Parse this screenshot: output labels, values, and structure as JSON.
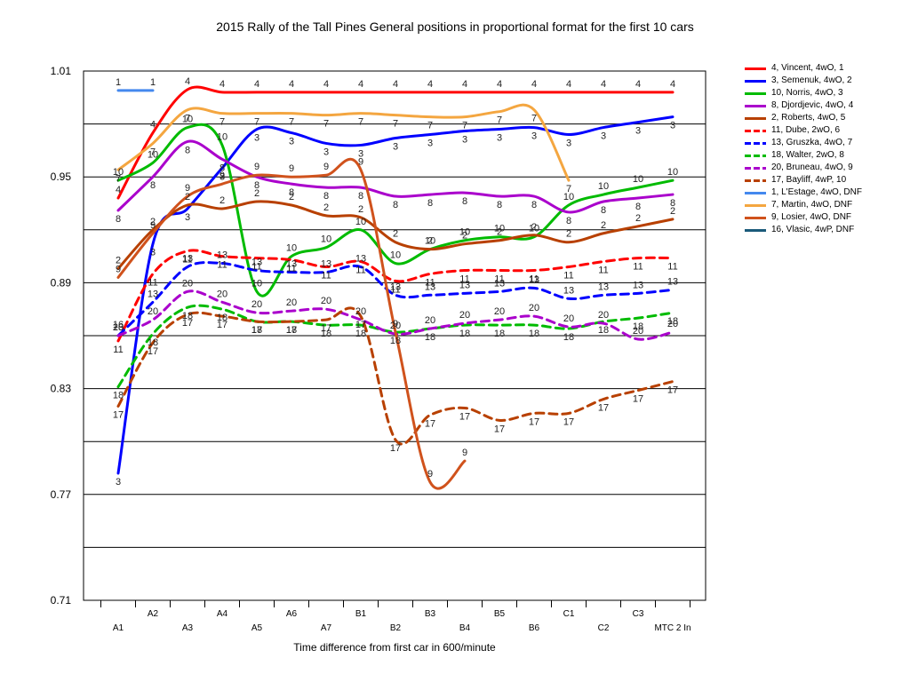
{
  "chart_data": {
    "type": "line",
    "title": "2015 Rally of the Tall Pines  General positions in proportional format for the first 10 cars",
    "xlabel": "Time difference from first car in 600/minute",
    "ylabel": "",
    "ylim": [
      0.71,
      1.01
    ],
    "yticks": [
      "1.01",
      "0.95",
      "0.89",
      "0.83",
      "0.77",
      "0.71"
    ],
    "grid": "horizontal",
    "legend_position": "right",
    "categories": [
      "A1",
      "A2",
      "A3",
      "A4",
      "A5",
      "A6",
      "A7",
      "B1",
      "B2",
      "B3",
      "B4",
      "B5",
      "B6",
      "C1",
      "C2",
      "C3",
      "MTC 2 In"
    ],
    "series": [
      {
        "name": "4, Vincent, 4wO, 1",
        "color": "#ff0000",
        "dash": "solid",
        "label": "4",
        "values": [
          0.938,
          0.975,
          0.9995,
          0.998,
          0.998,
          0.998,
          0.998,
          0.998,
          0.998,
          0.998,
          0.998,
          0.998,
          0.998,
          0.998,
          0.998,
          0.998,
          0.998
        ]
      },
      {
        "name": "3, Semenuk, 4wO, 2",
        "color": "#0000ff",
        "dash": "solid",
        "label": "3",
        "values": [
          0.782,
          0.912,
          0.932,
          0.955,
          0.977,
          0.975,
          0.969,
          0.968,
          0.972,
          0.974,
          0.976,
          0.977,
          0.978,
          0.974,
          0.978,
          0.981,
          0.984
        ]
      },
      {
        "name": "10, Norris, 4wO, 3",
        "color": "#00bb00",
        "dash": "solid",
        "label": "10",
        "values": [
          0.948,
          0.958,
          0.978,
          0.968,
          0.885,
          0.905,
          0.91,
          0.92,
          0.901,
          0.909,
          0.914,
          0.916,
          0.916,
          0.934,
          0.94,
          0.944,
          0.948
        ]
      },
      {
        "name": "8, Djordjevic, 4wO, 4",
        "color": "#aa00cc",
        "dash": "solid",
        "label": "8",
        "values": [
          0.931,
          0.95,
          0.97,
          0.96,
          0.95,
          0.946,
          0.944,
          0.944,
          0.939,
          0.94,
          0.941,
          0.939,
          0.939,
          0.93,
          0.936,
          0.938,
          0.94
        ]
      },
      {
        "name": "2, Roberts, 4wO, 5",
        "color": "#b84000",
        "dash": "solid",
        "label": "2",
        "values": [
          0.898,
          0.92,
          0.934,
          0.932,
          0.936,
          0.934,
          0.928,
          0.927,
          0.913,
          0.909,
          0.912,
          0.914,
          0.917,
          0.913,
          0.918,
          0.922,
          0.926
        ]
      },
      {
        "name": "11, Dube, 2wO, 6",
        "color": "#ff0000",
        "dash": "dash",
        "label": "11",
        "values": [
          0.857,
          0.895,
          0.908,
          0.905,
          0.904,
          0.903,
          0.899,
          0.902,
          0.891,
          0.895,
          0.897,
          0.897,
          0.897,
          0.899,
          0.902,
          0.904,
          0.904
        ]
      },
      {
        "name": "13, Gruszka, 4wO, 7",
        "color": "#0000ff",
        "dash": "dash",
        "label": "13",
        "values": [
          0.86,
          0.879,
          0.899,
          0.901,
          0.897,
          0.896,
          0.896,
          0.899,
          0.883,
          0.883,
          0.884,
          0.885,
          0.887,
          0.881,
          0.883,
          0.884,
          0.886
        ]
      },
      {
        "name": "18, Walter, 2wO, 8",
        "color": "#00bb00",
        "dash": "dash",
        "label": "18",
        "values": [
          0.831,
          0.861,
          0.876,
          0.875,
          0.868,
          0.868,
          0.866,
          0.866,
          0.862,
          0.864,
          0.866,
          0.866,
          0.866,
          0.864,
          0.868,
          0.87,
          0.873
        ]
      },
      {
        "name": "20, Bruneau, 4wO, 9",
        "color": "#aa00cc",
        "dash": "dash",
        "label": "20",
        "values": [
          0.86,
          0.869,
          0.885,
          0.879,
          0.873,
          0.874,
          0.875,
          0.869,
          0.861,
          0.864,
          0.867,
          0.869,
          0.871,
          0.865,
          0.867,
          0.858,
          0.862
        ]
      },
      {
        "name": "17, Bayliff, 4wP, 10",
        "color": "#b84000",
        "dash": "dash",
        "label": "17",
        "values": [
          0.82,
          0.856,
          0.872,
          0.871,
          0.868,
          0.868,
          0.869,
          0.871,
          0.801,
          0.815,
          0.819,
          0.812,
          0.816,
          0.816,
          0.824,
          0.829,
          0.834
        ]
      },
      {
        "name": "1, L'Estage, 4wO, DNF",
        "color": "#4488ee",
        "dash": "solid",
        "label": "1",
        "values": [
          0.999,
          0.999,
          null,
          null,
          null,
          null,
          null,
          null,
          null,
          null,
          null,
          null,
          null,
          null,
          null,
          null,
          null
        ]
      },
      {
        "name": "7, Martin, 4wO, DNF",
        "color": "#f4a640",
        "dash": "solid",
        "label": "7",
        "values": [
          0.954,
          0.969,
          0.988,
          0.986,
          0.986,
          0.986,
          0.985,
          0.986,
          0.985,
          0.984,
          0.984,
          0.987,
          0.988,
          0.948,
          null,
          null,
          null
        ]
      },
      {
        "name": "9, Losier, 4wO, DNF",
        "color": "#d0521c",
        "dash": "solid",
        "label": "9",
        "values": [
          0.893,
          0.918,
          0.939,
          0.946,
          0.951,
          0.95,
          0.951,
          0.954,
          0.862,
          0.777,
          0.789,
          null,
          null,
          null,
          null,
          null,
          null
        ]
      },
      {
        "name": "16, Vlasic, 4wP, DNF",
        "color": "#1a5a7a",
        "dash": "solid",
        "label": "16",
        "values": [
          0.871,
          null,
          null,
          null,
          null,
          null,
          null,
          null,
          null,
          null,
          null,
          null,
          null,
          null,
          null,
          null,
          null
        ]
      }
    ]
  }
}
